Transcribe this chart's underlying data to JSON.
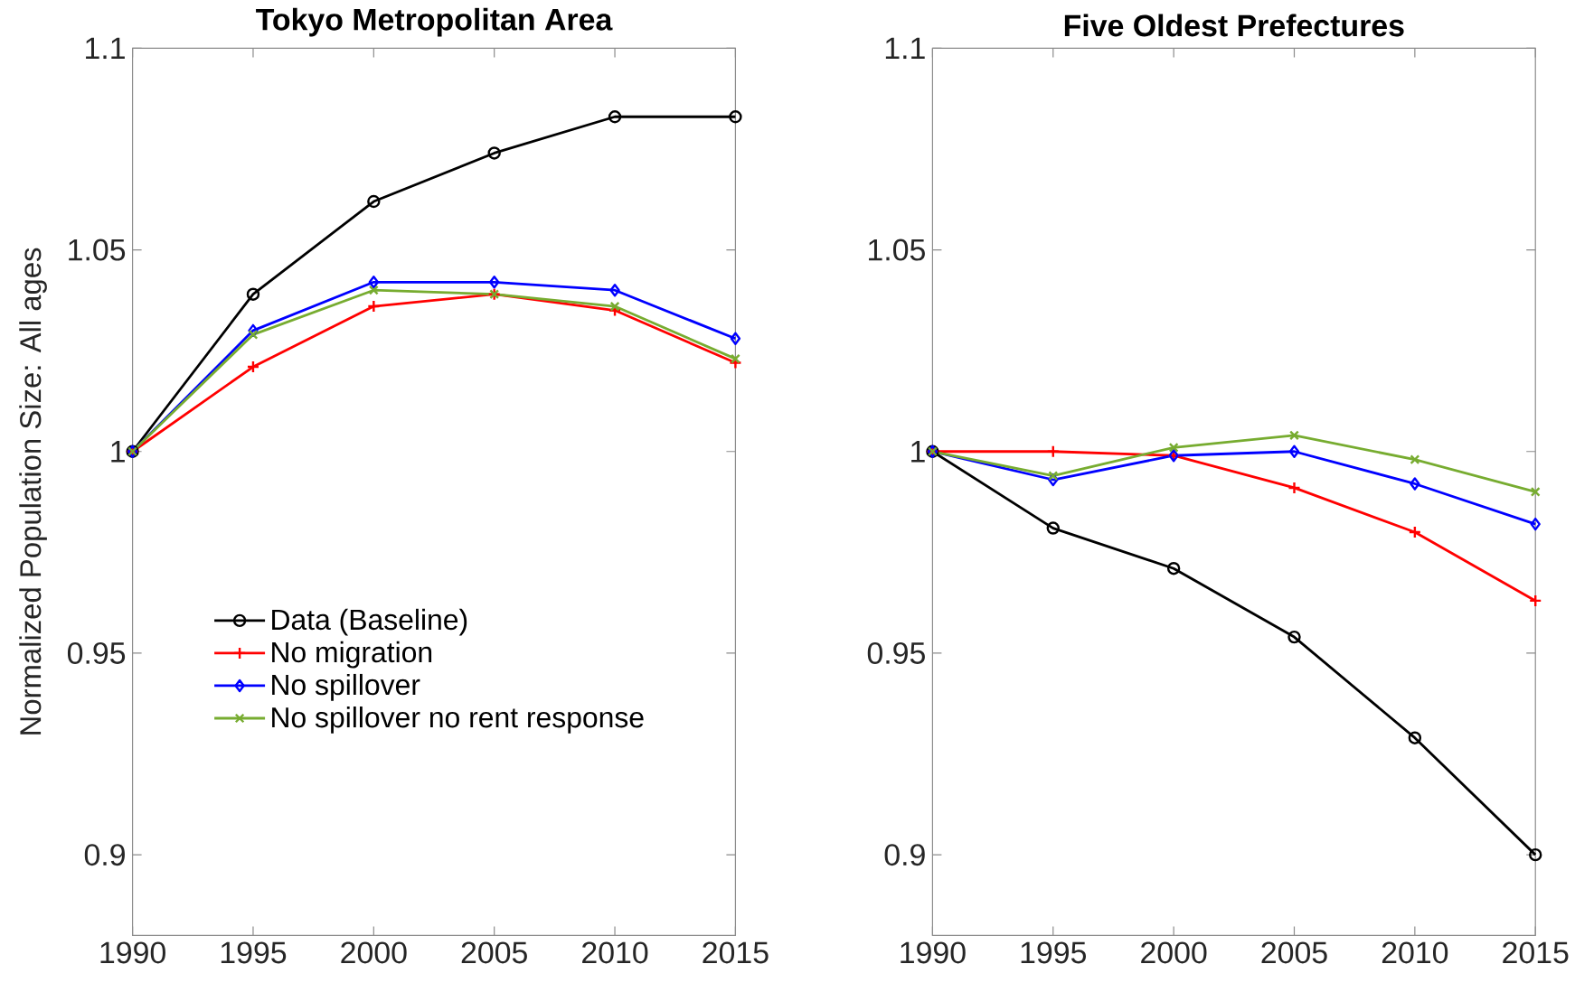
{
  "chart_data": [
    {
      "type": "line",
      "title": "Tokyo Metropolitan Area",
      "ylabel": "Normalized Population Size: All ages",
      "x": [
        1990,
        1995,
        2000,
        2005,
        2010,
        2015
      ],
      "series": [
        {
          "name": "Data (Baseline)",
          "color": "#000000",
          "marker": "circle",
          "values": [
            1,
            1.039,
            1.062,
            1.074,
            1.083,
            1.083
          ]
        },
        {
          "name": "No migration",
          "color": "#ff0000",
          "marker": "plus",
          "values": [
            1,
            1.021,
            1.036,
            1.039,
            1.035,
            1.022
          ]
        },
        {
          "name": "No spillover",
          "color": "#0000ff",
          "marker": "diamond",
          "values": [
            1,
            1.03,
            1.042,
            1.042,
            1.04,
            1.028
          ]
        },
        {
          "name": "No spillover no rent response",
          "color": "#77ac30",
          "marker": "cross",
          "values": [
            1,
            1.029,
            1.04,
            1.039,
            1.036,
            1.023
          ]
        }
      ],
      "xlim": [
        1990,
        2015
      ],
      "ylim": [
        0.88,
        1.1
      ],
      "xticks": [
        1990,
        1995,
        2000,
        2005,
        2010,
        2015
      ],
      "yticks": [
        0.9,
        0.95,
        1,
        1.05,
        1.1
      ],
      "legend": "bottom left"
    },
    {
      "type": "line",
      "title": "Five Oldest Prefectures",
      "x": [
        1990,
        1995,
        2000,
        2005,
        2010,
        2015
      ],
      "series": [
        {
          "color": "#000000",
          "marker": "circle",
          "values": [
            1,
            0.981,
            0.971,
            0.954,
            0.929,
            0.9
          ]
        },
        {
          "color": "#ff0000",
          "marker": "plus",
          "values": [
            1,
            1.0,
            0.999,
            0.991,
            0.98,
            0.963
          ]
        },
        {
          "color": "#0000ff",
          "marker": "diamond",
          "values": [
            1,
            0.993,
            0.999,
            1.0,
            0.992,
            0.982
          ]
        },
        {
          "color": "#77ac30",
          "marker": "cross",
          "values": [
            1,
            0.994,
            1.001,
            1.004,
            0.998,
            0.99
          ]
        }
      ],
      "xlim": [
        1990,
        2015
      ],
      "ylim": [
        0.88,
        1.1
      ],
      "xticks": [
        1990,
        1995,
        2000,
        2005,
        2010,
        2015
      ],
      "yticks": [
        0.9,
        0.95,
        1,
        1.05,
        1.1
      ]
    }
  ]
}
